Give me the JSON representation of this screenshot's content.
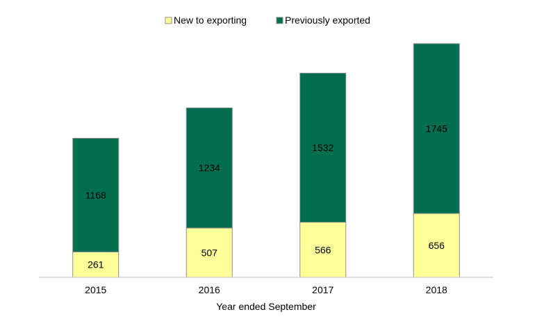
{
  "chart_data": {
    "type": "bar",
    "stacked": true,
    "categories": [
      "2015",
      "2016",
      "2017",
      "2018"
    ],
    "series": [
      {
        "name": "New to exporting",
        "color": "#FFFF99",
        "values": [
          261,
          507,
          566,
          656
        ]
      },
      {
        "name": "Previously exported",
        "color": "#006E4F",
        "values": [
          1168,
          1234,
          1532,
          1745
        ]
      }
    ],
    "xlabel": "Year ended September",
    "ylabel": "",
    "ylim": [
      0,
      2650
    ],
    "grid": false,
    "legend_position": "top-center",
    "data_labels": true
  }
}
